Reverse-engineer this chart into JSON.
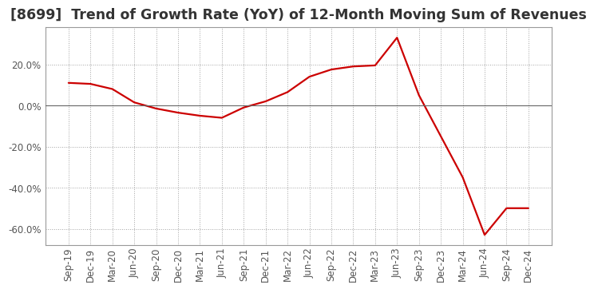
{
  "title": "[8699]  Trend of Growth Rate (YoY) of 12-Month Moving Sum of Revenues",
  "line_color": "#CC0000",
  "background_color": "#FFFFFF",
  "grid_color": "#AAAAAA",
  "labels": [
    "Sep-19",
    "Dec-19",
    "Mar-20",
    "Jun-20",
    "Sep-20",
    "Dec-20",
    "Mar-21",
    "Jun-21",
    "Sep-21",
    "Dec-21",
    "Mar-22",
    "Jun-22",
    "Sep-22",
    "Dec-22",
    "Mar-23",
    "Jun-23",
    "Sep-23",
    "Dec-23",
    "Mar-24",
    "Jun-24",
    "Sep-24",
    "Dec-24"
  ],
  "values": [
    11.0,
    10.5,
    8.0,
    1.5,
    -1.5,
    -3.5,
    -5.0,
    -6.0,
    -1.0,
    2.0,
    6.5,
    14.0,
    17.5,
    19.0,
    19.5,
    33.0,
    5.0,
    -15.0,
    -35.0,
    -63.0,
    -50.0,
    -50.0
  ],
  "ylim": [
    -68,
    38
  ],
  "yticks": [
    -60.0,
    -40.0,
    -20.0,
    0.0,
    20.0
  ],
  "title_fontsize": 12.5,
  "tick_fontsize": 8.5,
  "line_width": 1.6
}
